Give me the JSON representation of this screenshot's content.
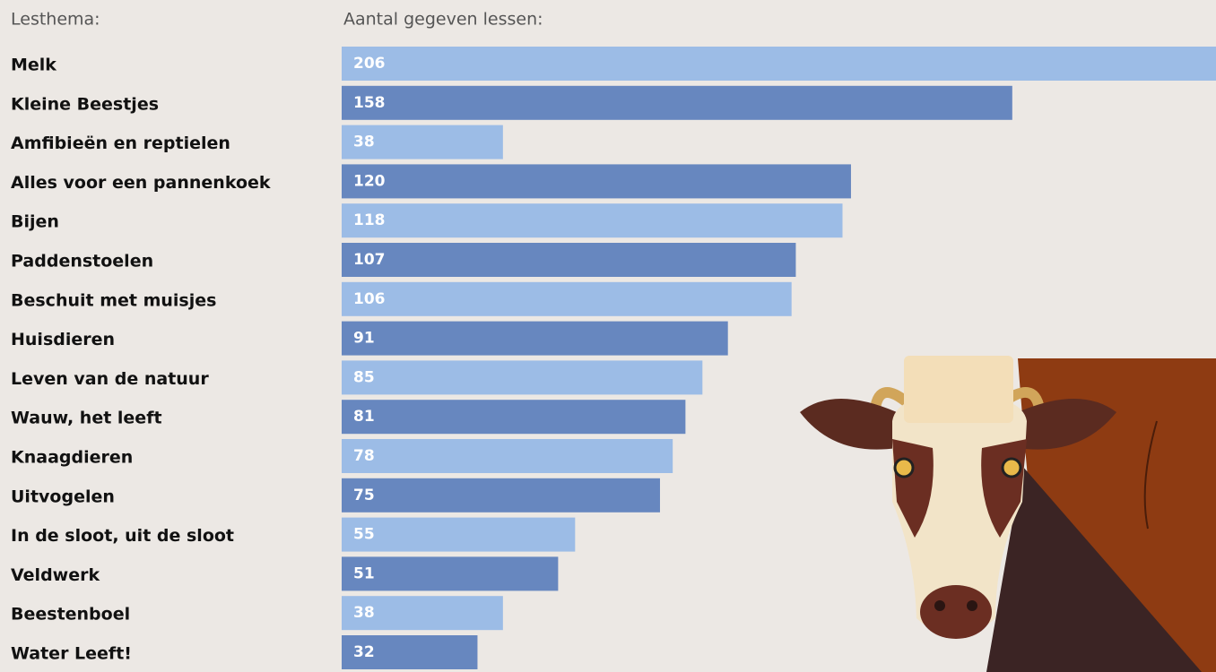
{
  "chart_data": {
    "type": "bar",
    "orientation": "horizontal",
    "category_header": "Lesthema:",
    "value_header": "Aantal gegeven lessen:",
    "categories": [
      "Melk",
      "Kleine Beestjes",
      "Amfibieën en reptielen",
      "Alles voor een pannenkoek",
      "Bijen",
      "Paddenstoelen",
      "Beschuit met muisjes",
      "Huisdieren",
      "Leven van de natuur",
      "Wauw, het leeft",
      "Knaagdieren",
      "Uitvogelen",
      "In de sloot, uit de sloot",
      "Veldwerk",
      "Beestenboel",
      "Water Leeft!"
    ],
    "values": [
      206,
      158,
      38,
      120,
      118,
      107,
      106,
      91,
      85,
      81,
      78,
      75,
      55,
      51,
      38,
      32
    ],
    "colors": [
      "#9cbce6",
      "#6787bf"
    ]
  }
}
